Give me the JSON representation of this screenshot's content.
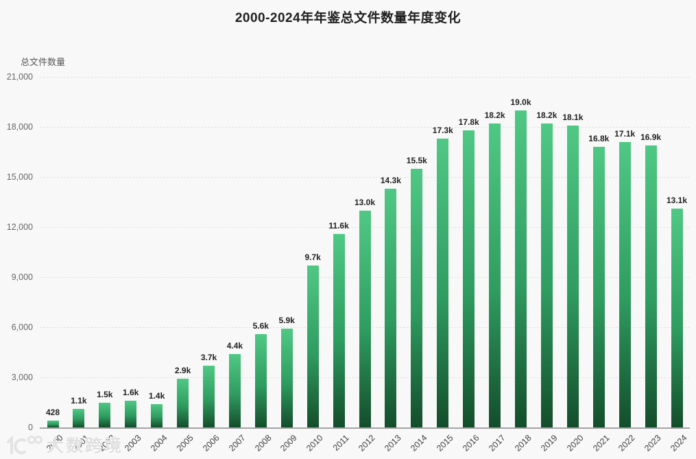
{
  "watermark": {
    "text": "大数跨境"
  },
  "chart_data": {
    "type": "bar",
    "title": "2000-2024年年鉴总文件数量年度变化",
    "ylabel": "总文件数量",
    "xlabel": "",
    "categories": [
      "2000",
      "2001",
      "2002",
      "2003",
      "2004",
      "2005",
      "2006",
      "2007",
      "2008",
      "2009",
      "2010",
      "2011",
      "2012",
      "2013",
      "2014",
      "2015",
      "2016",
      "2017",
      "2018",
      "2019",
      "2020",
      "2021",
      "2022",
      "2023",
      "2024"
    ],
    "values": [
      428,
      1100,
      1500,
      1600,
      1400,
      2900,
      3700,
      4400,
      5600,
      5900,
      9700,
      11600,
      13000,
      14300,
      15500,
      17300,
      17800,
      18200,
      19000,
      18200,
      18100,
      16800,
      17100,
      16900,
      13100
    ],
    "value_labels": [
      "428",
      "1.1k",
      "1.5k",
      "1.6k",
      "1.4k",
      "2.9k",
      "3.7k",
      "4.4k",
      "5.6k",
      "5.9k",
      "9.7k",
      "11.6k",
      "13.0k",
      "14.3k",
      "15.5k",
      "17.3k",
      "17.8k",
      "18.2k",
      "19.0k",
      "18.2k",
      "18.1k",
      "16.8k",
      "17.1k",
      "16.9k",
      "13.1k"
    ],
    "ylim": [
      0,
      21000
    ],
    "y_ticks": [
      {
        "value": 21000,
        "label": "21,000"
      },
      {
        "value": 18000,
        "label": "18,000"
      },
      {
        "value": 15000,
        "label": "15,000"
      },
      {
        "value": 12000,
        "label": "12,000"
      },
      {
        "value": 9000,
        "label": "9,000"
      },
      {
        "value": 6000,
        "label": "6,000"
      },
      {
        "value": 3000,
        "label": "3,000"
      },
      {
        "value": 0,
        "label": "0"
      }
    ],
    "grid": true,
    "grid_style": "dashed",
    "legend": "none",
    "bar_gradient_top": "#50c885",
    "bar_gradient_mid": "#2f9c60",
    "bar_gradient_bottom": "#134d2b"
  }
}
